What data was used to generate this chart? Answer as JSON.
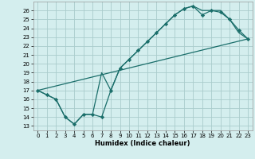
{
  "xlabel": "Humidex (Indice chaleur)",
  "bg_color": "#d4eeee",
  "grid_color": "#aacccc",
  "line_color": "#1a6e6a",
  "xlim": [
    -0.5,
    23.5
  ],
  "ylim": [
    12.5,
    27.0
  ],
  "xticks": [
    0,
    1,
    2,
    3,
    4,
    5,
    6,
    7,
    8,
    9,
    10,
    11,
    12,
    13,
    14,
    15,
    16,
    17,
    18,
    19,
    20,
    21,
    22,
    23
  ],
  "yticks": [
    13,
    14,
    15,
    16,
    17,
    18,
    19,
    20,
    21,
    22,
    23,
    24,
    25,
    26
  ],
  "series1_x": [
    0,
    1,
    2,
    3,
    4,
    5,
    6,
    7,
    8,
    9,
    10,
    11,
    12,
    13,
    14,
    15,
    16,
    17,
    18,
    19,
    20,
    21,
    22,
    23
  ],
  "series1_y": [
    17.0,
    16.5,
    16.0,
    14.0,
    13.2,
    14.3,
    14.3,
    14.0,
    17.0,
    19.5,
    20.5,
    21.5,
    22.5,
    23.5,
    24.5,
    25.5,
    26.2,
    26.5,
    25.5,
    26.0,
    25.8,
    25.0,
    23.8,
    22.8
  ],
  "series2_x": [
    0,
    1,
    2,
    3,
    4,
    5,
    6,
    7,
    8,
    9,
    10,
    11,
    12,
    13,
    14,
    15,
    16,
    17,
    18,
    19,
    20,
    21,
    22,
    23
  ],
  "series2_y": [
    17.0,
    16.5,
    16.0,
    14.0,
    13.2,
    14.3,
    14.3,
    19.0,
    17.0,
    19.5,
    20.5,
    21.5,
    22.5,
    23.5,
    24.5,
    25.5,
    26.2,
    26.5,
    26.0,
    26.0,
    26.0,
    25.0,
    23.5,
    22.8
  ],
  "series3_x": [
    0,
    23
  ],
  "series3_y": [
    17.0,
    22.8
  ]
}
